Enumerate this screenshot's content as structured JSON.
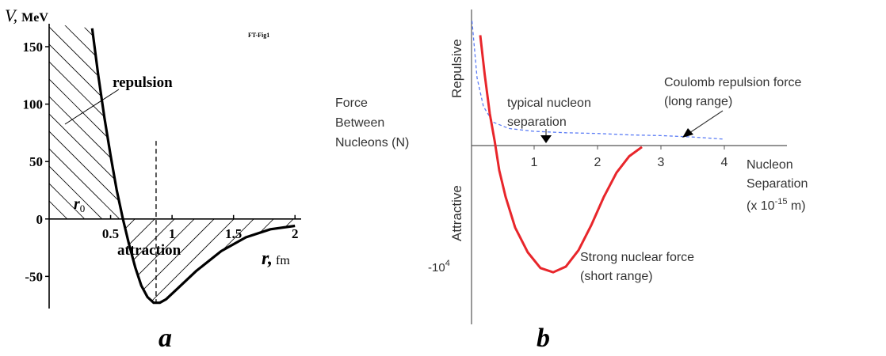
{
  "chart_data": [
    {
      "type": "line",
      "panel_label": "a",
      "y_axis_label": {
        "var": "V,",
        "unit": "MeV"
      },
      "x_axis_label": {
        "var": "r,",
        "unit": "fm"
      },
      "corner_note": "FT-Fig1",
      "xlim": [
        0,
        2.05
      ],
      "ylim": [
        -78,
        170
      ],
      "x_ticks": [
        {
          "v": 0.5,
          "label": "0.5"
        },
        {
          "v": 1.0,
          "label": "1"
        },
        {
          "v": 1.5,
          "label": "1.5"
        },
        {
          "v": 2.0,
          "label": "2"
        }
      ],
      "y_ticks": [
        {
          "v": 150,
          "label": "150"
        },
        {
          "v": 100,
          "label": "100"
        },
        {
          "v": 50,
          "label": "50"
        },
        {
          "v": 0,
          "label": "0"
        },
        {
          "v": -50,
          "label": "-50"
        }
      ],
      "series": [
        {
          "points": [
            {
              "x": 0.35,
              "y": 166
            },
            {
              "x": 0.4,
              "y": 125
            },
            {
              "x": 0.45,
              "y": 88
            },
            {
              "x": 0.5,
              "y": 55
            },
            {
              "x": 0.55,
              "y": 25
            },
            {
              "x": 0.6,
              "y": 0
            },
            {
              "x": 0.65,
              "y": -22
            },
            {
              "x": 0.7,
              "y": -42
            },
            {
              "x": 0.75,
              "y": -58
            },
            {
              "x": 0.8,
              "y": -68
            },
            {
              "x": 0.85,
              "y": -73
            },
            {
              "x": 0.9,
              "y": -73
            },
            {
              "x": 0.95,
              "y": -70
            },
            {
              "x": 1.05,
              "y": -60
            },
            {
              "x": 1.2,
              "y": -45
            },
            {
              "x": 1.4,
              "y": -28
            },
            {
              "x": 1.6,
              "y": -16
            },
            {
              "x": 1.8,
              "y": -9
            },
            {
              "x": 2.0,
              "y": -6
            }
          ]
        }
      ],
      "r0_marker": {
        "x": 0.6,
        "label": "r",
        "subscript": "0"
      },
      "minimum_marker_x": 0.87,
      "labels": {
        "repulsion": "repulsion",
        "attraction": "attraction"
      }
    },
    {
      "type": "line",
      "panel_label": "b",
      "y_axis_title": "Force Between Nucleons (N)",
      "y_axis_title_lines": [
        "Force",
        "Between",
        "Nucleons (N)"
      ],
      "y_axis_upper_label": "Repulsive",
      "y_axis_lower_label": "Attractive",
      "y_tick_label": {
        "base": "-10",
        "exp": "4"
      },
      "x_axis_title_lines": [
        "Nucleon",
        "Separation"
      ],
      "x_axis_units": {
        "prefix": "(x 10",
        "exp": "-15",
        "suffix": " m)"
      },
      "xlim": [
        -0.05,
        5.2
      ],
      "x_ticks": [
        {
          "v": 1,
          "label": "1"
        },
        {
          "v": 2,
          "label": "2"
        },
        {
          "v": 3,
          "label": "3"
        },
        {
          "v": 4,
          "label": "4"
        }
      ],
      "series": [
        {
          "name": "Strong nuclear force",
          "name_lines": [
            "Strong nuclear force",
            "(short range)"
          ],
          "color": "#e8262b",
          "style": "solid",
          "points": [
            {
              "x": 0.15,
              "y": 1.55
            },
            {
              "x": 0.22,
              "y": 1.0
            },
            {
              "x": 0.3,
              "y": 0.45
            },
            {
              "x": 0.38,
              "y": 0.05
            },
            {
              "x": 0.45,
              "y": -0.35
            },
            {
              "x": 0.55,
              "y": -0.72
            },
            {
              "x": 0.7,
              "y": -1.15
            },
            {
              "x": 0.9,
              "y": -1.5
            },
            {
              "x": 1.1,
              "y": -1.72
            },
            {
              "x": 1.3,
              "y": -1.78
            },
            {
              "x": 1.5,
              "y": -1.7
            },
            {
              "x": 1.7,
              "y": -1.47
            },
            {
              "x": 1.9,
              "y": -1.12
            },
            {
              "x": 2.1,
              "y": -0.72
            },
            {
              "x": 2.3,
              "y": -0.38
            },
            {
              "x": 2.5,
              "y": -0.15
            },
            {
              "x": 2.7,
              "y": -0.02
            }
          ]
        },
        {
          "name": "Coulomb repulsion force",
          "name_lines": [
            "Coulomb repulsion force",
            "(long range)"
          ],
          "color": "#5b7cf5",
          "style": "dashed",
          "points": [
            {
              "x": 0.02,
              "y": 1.75
            },
            {
              "x": 0.1,
              "y": 0.95
            },
            {
              "x": 0.2,
              "y": 0.55
            },
            {
              "x": 0.35,
              "y": 0.33
            },
            {
              "x": 0.6,
              "y": 0.24
            },
            {
              "x": 1.0,
              "y": 0.2
            },
            {
              "x": 1.5,
              "y": 0.18
            },
            {
              "x": 2.0,
              "y": 0.17
            },
            {
              "x": 2.5,
              "y": 0.15
            },
            {
              "x": 3.0,
              "y": 0.14
            },
            {
              "x": 3.5,
              "y": 0.12
            },
            {
              "x": 4.0,
              "y": 0.09
            }
          ]
        }
      ],
      "annotation": {
        "lines": [
          "typical nucleon",
          "separation"
        ],
        "x": 1.3
      }
    }
  ]
}
